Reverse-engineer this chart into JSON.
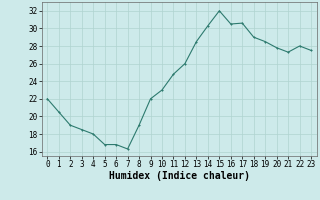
{
  "x": [
    0,
    1,
    2,
    3,
    4,
    5,
    6,
    7,
    8,
    9,
    10,
    11,
    12,
    13,
    14,
    15,
    16,
    17,
    18,
    19,
    20,
    21,
    22,
    23
  ],
  "y": [
    22,
    20.5,
    19,
    18.5,
    18,
    16.8,
    16.8,
    16.3,
    19,
    22,
    23,
    24.8,
    26,
    28.5,
    30.3,
    32,
    30.5,
    30.6,
    29,
    28.5,
    27.8,
    27.3,
    28,
    27.5
  ],
  "xlabel": "Humidex (Indice chaleur)",
  "ylim": [
    15.5,
    33
  ],
  "xlim": [
    -0.5,
    23.5
  ],
  "yticks": [
    16,
    18,
    20,
    22,
    24,
    26,
    28,
    30,
    32
  ],
  "xticks": [
    0,
    1,
    2,
    3,
    4,
    5,
    6,
    7,
    8,
    9,
    10,
    11,
    12,
    13,
    14,
    15,
    16,
    17,
    18,
    19,
    20,
    21,
    22,
    23
  ],
  "line_color": "#2d7a6e",
  "marker_color": "#2d7a6e",
  "bg_color": "#cdeaea",
  "grid_color": "#b0d4d0",
  "tick_fontsize": 5.5,
  "xlabel_fontsize": 7,
  "marker_size": 2.0
}
